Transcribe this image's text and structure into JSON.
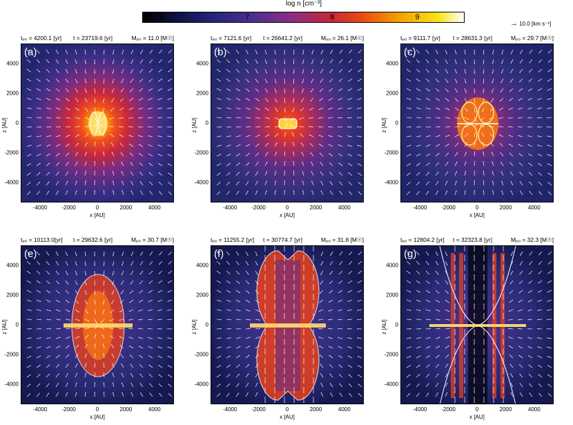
{
  "colorbar": {
    "title": "log n [cm⁻³]",
    "ticks": [
      "6",
      "7",
      "8",
      "9"
    ]
  },
  "vector_legend": {
    "arrow": "→",
    "label": "10.0 [km s⁻¹]"
  },
  "axes": {
    "xlabel": "x [AU]",
    "zlabel": "z [AU]",
    "xticks": [
      "-4000",
      "-2000",
      "0",
      "2000",
      "4000"
    ],
    "zticks": [
      "4000",
      "2000",
      "0",
      "-2000",
      "-4000"
    ]
  },
  "panels": [
    {
      "label": "(a)",
      "tpo": "tₚₒ = 4200.1 [yr]",
      "t": "t = 23719.6 [yr]",
      "mpo": "Mₚₒ = 11.0 [M☉]",
      "morph": "a"
    },
    {
      "label": "(b)",
      "tpo": "tₚₒ = 7121.6 [yr]",
      "t": "t = 26641.2 [yr]",
      "mpo": "Mₚₒ = 26.1 [M☉]",
      "morph": "b"
    },
    {
      "label": "(c)",
      "tpo": "tₚₒ = 9111.7 [yr]",
      "t": "t = 28631.3 [yr]",
      "mpo": "Mₚₒ = 29.7 [M☉]",
      "morph": "c"
    },
    {
      "label": "(e)",
      "tpo": "tₚₒ = 10113.0[yr]",
      "t": "t = 29632.6 [yr]",
      "mpo": "Mₚₒ = 30.7 [M☉]",
      "morph": "e"
    },
    {
      "label": "(f)",
      "tpo": "tₚₒ = 11255.2 [yr]",
      "t": "t = 30774.7 [yr]",
      "mpo": "Mₚₒ = 31.8 [M☉]",
      "morph": "f"
    },
    {
      "label": "(g)",
      "tpo": "tₚₒ = 12804.2 [yr]",
      "t": "t = 32323.8 [yr]",
      "mpo": "Mₚₒ = 32.3 [M☉]",
      "morph": "g"
    }
  ]
}
